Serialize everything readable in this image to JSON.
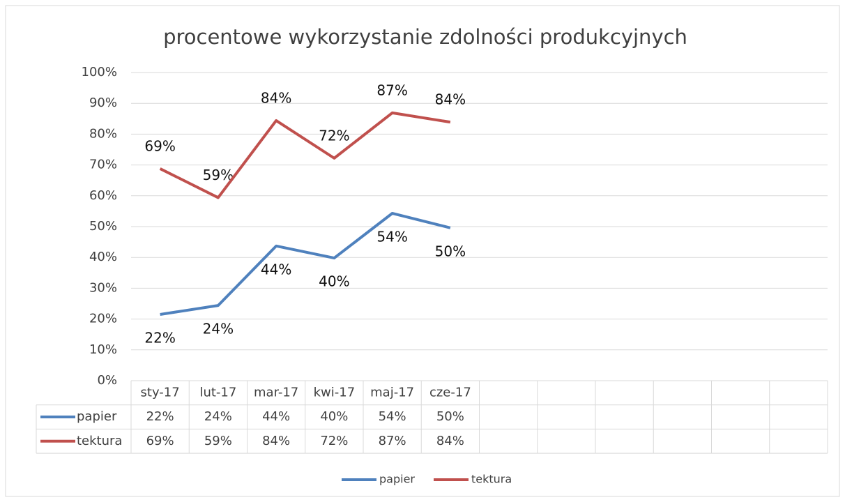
{
  "chart_data": {
    "type": "line",
    "title": "procentowe wykorzystanie zdolności produkcyjnych",
    "categories": [
      "sty-17",
      "lut-17",
      "mar-17",
      "kwi-17",
      "maj-17",
      "cze-17",
      null,
      null,
      null,
      null,
      null,
      null
    ],
    "series": [
      {
        "name": "papier",
        "color": "#4f81bd",
        "values": [
          21.5,
          24.4,
          43.7,
          39.8,
          54.3,
          49.6,
          null,
          null,
          null,
          null,
          null,
          null
        ],
        "value_labels": [
          "22%",
          "24%",
          "44%",
          "40%",
          "54%",
          "50%",
          null,
          null,
          null,
          null,
          null,
          null
        ]
      },
      {
        "name": "tektura",
        "color": "#c0504d",
        "values": [
          68.8,
          59.4,
          84.4,
          72.2,
          86.9,
          83.9,
          null,
          null,
          null,
          null,
          null,
          null
        ],
        "value_labels": [
          "69%",
          "59%",
          "84%",
          "72%",
          "87%",
          "84%",
          null,
          null,
          null,
          null,
          null,
          null
        ]
      }
    ],
    "ylim": [
      0,
      100
    ],
    "yticks": [
      {
        "value": 0,
        "label": "0%"
      },
      {
        "value": 10,
        "label": "10%"
      },
      {
        "value": 20,
        "label": "20%"
      },
      {
        "value": 30,
        "label": "30%"
      },
      {
        "value": 40,
        "label": "40%"
      },
      {
        "value": 50,
        "label": "50%"
      },
      {
        "value": 60,
        "label": "60%"
      },
      {
        "value": 70,
        "label": "70%"
      },
      {
        "value": 80,
        "label": "80%"
      },
      {
        "value": 90,
        "label": "90%"
      },
      {
        "value": 100,
        "label": "100%"
      }
    ],
    "grid": true,
    "legend": "bottom"
  }
}
